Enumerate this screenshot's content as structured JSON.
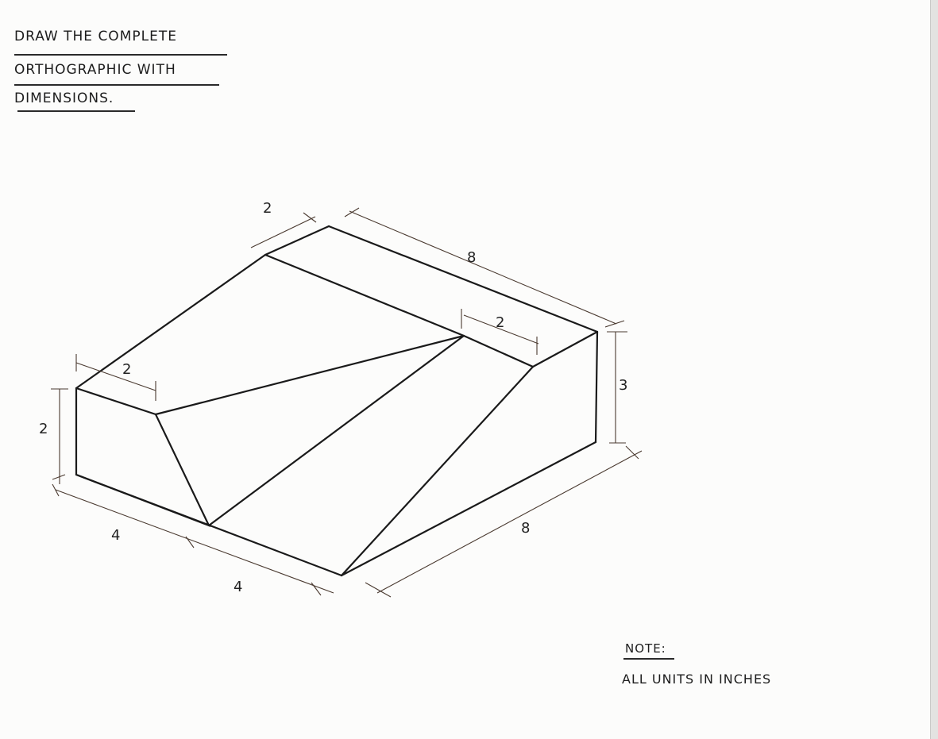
{
  "instructions": {
    "line1": "DRAW THE COMPLETE",
    "line2": "ORTHOGRAPHIC WITH",
    "line3": "DIMENSIONS."
  },
  "dimensions": {
    "top_notch_width": "2",
    "top_length": "8",
    "right_notch_width": "2",
    "left_notch_width": "2",
    "left_height": "2",
    "right_height": "3",
    "bottom_left_segment": "4",
    "bottom_right_segment": "4",
    "bottom_depth": "8"
  },
  "note": {
    "title": "NOTE:",
    "text": "ALL UNITS IN INCHES"
  }
}
